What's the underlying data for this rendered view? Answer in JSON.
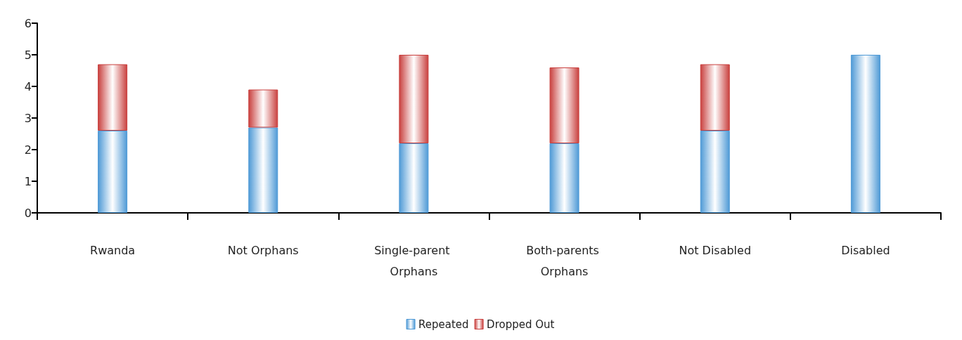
{
  "chart_data": {
    "type": "bar",
    "stacked": true,
    "categories": [
      "Rwanda",
      "Not Orphans",
      "Single-parent Orphans",
      "Both-parents Orphans",
      "Not Disabled",
      "Disabled"
    ],
    "series": [
      {
        "name": "Repeated",
        "color": "#4f9ad6",
        "values": [
          2.6,
          2.7,
          2.2,
          2.2,
          2.6,
          5.0
        ]
      },
      {
        "name": "Dropped Out",
        "color": "#c9413f",
        "values": [
          2.1,
          1.2,
          2.8,
          2.4,
          2.1,
          null
        ]
      }
    ],
    "ylim": [
      0,
      6
    ],
    "yticks": [
      0,
      1,
      2,
      3,
      4,
      5,
      6
    ],
    "grid": false,
    "legend": "bottom"
  }
}
